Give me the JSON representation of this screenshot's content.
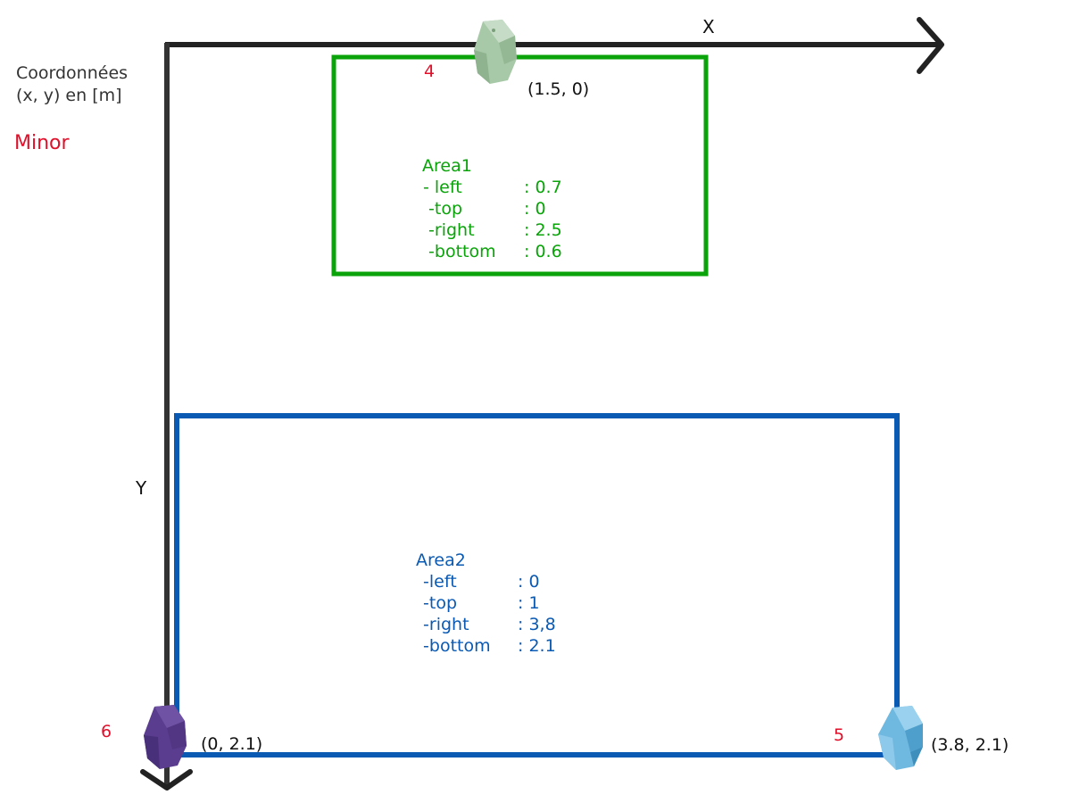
{
  "legend": {
    "coordinates_line1": "Coordonnées",
    "coordinates_line2": "(x, y) en [m]",
    "mode": "Minor"
  },
  "axes": {
    "x_label": "X",
    "y_label": "Y"
  },
  "areas": [
    {
      "name": "Area1",
      "color": "#0aa30a",
      "rows": [
        {
          "label": "- left",
          "value": ": 0.7"
        },
        {
          "label": " -top",
          "value": ": 0"
        },
        {
          "label": " -right",
          "value": ": 2.5"
        },
        {
          "label": " -bottom",
          "value": ": 0.6"
        }
      ]
    },
    {
      "name": "Area2",
      "color": "#0a5ab4",
      "rows": [
        {
          "label": " -left",
          "value": ": 0"
        },
        {
          "label": " -top",
          "value": ": 1"
        },
        {
          "label": " -right",
          "value": ": 3,8"
        },
        {
          "label": " -bottom",
          "value": ": 2.1"
        }
      ]
    }
  ],
  "beacons": [
    {
      "id": "4",
      "coords": "(1.5, 0)",
      "color": "#a8c9a8",
      "icon": "beacon-icon"
    },
    {
      "id": "6",
      "coords": "(0, 2.1)",
      "color": "#5b3d8f",
      "icon": "beacon-icon"
    },
    {
      "id": "5",
      "coords": "(3.8, 2.1)",
      "color": "#6fb8e0",
      "icon": "beacon-icon"
    }
  ],
  "colors": {
    "axis": "#222222",
    "id_label": "#e0102a",
    "text": "#111111"
  }
}
